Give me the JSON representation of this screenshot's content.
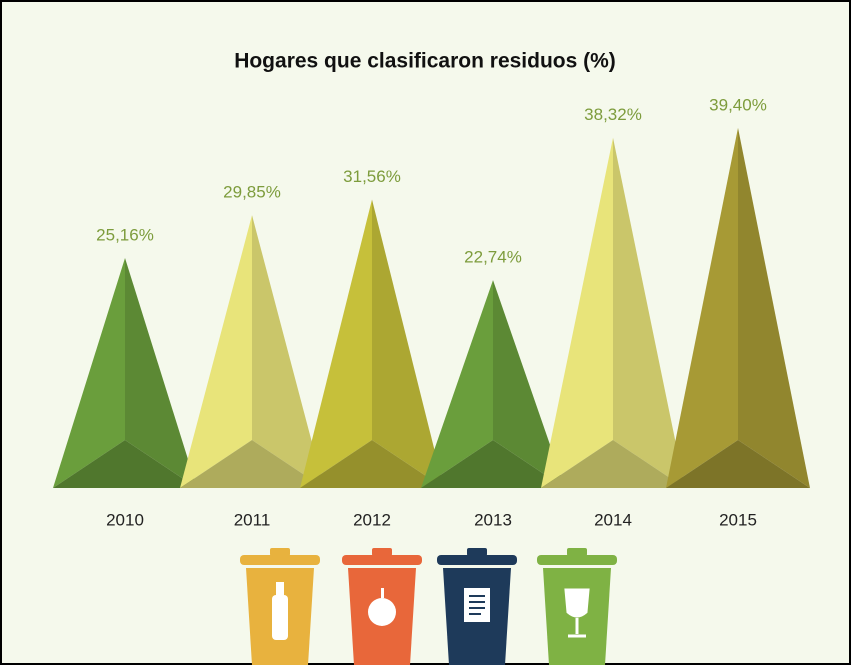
{
  "chart_data": {
    "type": "pyramid",
    "title": "Hogares que clasificaron residuos (%)",
    "categories": [
      "2010",
      "2011",
      "2012",
      "2013",
      "2014",
      "2015"
    ],
    "values": [
      25.16,
      29.85,
      31.56,
      22.74,
      38.32,
      39.4
    ],
    "value_labels": [
      "25,16%",
      "29,85%",
      "31,56%",
      "22,74%",
      "38,32%",
      "39,40%"
    ],
    "colors": [
      "#6a9e3c",
      "#e8e47a",
      "#c6c03a",
      "#6a9e3c",
      "#e8e47a",
      "#a79a35"
    ]
  }
}
